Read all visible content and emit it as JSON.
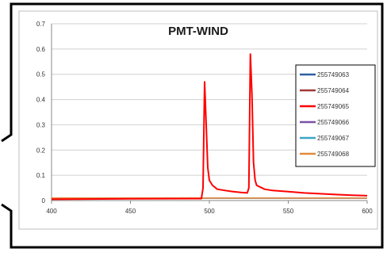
{
  "chart_data": {
    "type": "line",
    "title": "PMT-WIND",
    "xlabel": "",
    "ylabel": "",
    "xlim": [
      400,
      600
    ],
    "ylim": [
      0,
      0.7
    ],
    "x_ticks": [
      400,
      450,
      500,
      550,
      600
    ],
    "y_ticks": [
      0,
      0.1,
      0.2,
      0.3,
      0.4,
      0.5,
      0.6,
      0.7
    ],
    "grid": "horizontal",
    "legend_position": "right",
    "series": [
      {
        "name": "255749063",
        "color": "#2e5fa3",
        "points": [
          [
            400,
            0.01
          ],
          [
            600,
            0.01
          ]
        ]
      },
      {
        "name": "255749064",
        "color": "#a0393a",
        "points": [
          [
            400,
            0.01
          ],
          [
            600,
            0.01
          ]
        ]
      },
      {
        "name": "255749065",
        "color": "#ff0000",
        "points": [
          [
            400,
            0.005
          ],
          [
            450,
            0.007
          ],
          [
            490,
            0.008
          ],
          [
            495,
            0.008
          ],
          [
            496,
            0.05
          ],
          [
            497,
            0.47
          ],
          [
            498,
            0.3
          ],
          [
            499,
            0.13
          ],
          [
            500,
            0.08
          ],
          [
            502,
            0.06
          ],
          [
            505,
            0.045
          ],
          [
            510,
            0.04
          ],
          [
            515,
            0.035
          ],
          [
            520,
            0.032
          ],
          [
            524,
            0.03
          ],
          [
            525,
            0.05
          ],
          [
            526,
            0.58
          ],
          [
            527,
            0.42
          ],
          [
            528,
            0.15
          ],
          [
            529,
            0.08
          ],
          [
            530,
            0.06
          ],
          [
            535,
            0.045
          ],
          [
            540,
            0.04
          ],
          [
            550,
            0.035
          ],
          [
            560,
            0.03
          ],
          [
            570,
            0.027
          ],
          [
            580,
            0.024
          ],
          [
            590,
            0.021
          ],
          [
            600,
            0.019
          ]
        ]
      },
      {
        "name": "255749066",
        "color": "#7b52a6",
        "points": [
          [
            400,
            0.01
          ],
          [
            600,
            0.01
          ]
        ]
      },
      {
        "name": "255749067",
        "color": "#3aa6c4",
        "points": [
          [
            400,
            0.01
          ],
          [
            600,
            0.01
          ]
        ]
      },
      {
        "name": "255749068",
        "color": "#e08a3c",
        "points": [
          [
            400,
            0.01
          ],
          [
            600,
            0.01
          ]
        ]
      }
    ]
  }
}
